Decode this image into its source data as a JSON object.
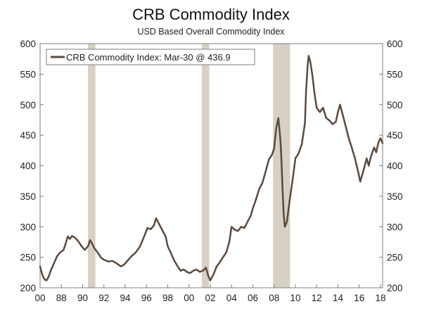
{
  "chart_data": {
    "type": "line",
    "title": "CRB Commodity Index",
    "subtitle": "USD Based Overall Commodity Index",
    "ylim": [
      200,
      600
    ],
    "yticks": [
      200,
      250,
      300,
      350,
      400,
      450,
      500,
      550,
      600
    ],
    "xlim": [
      1986.0,
      2018.2
    ],
    "xticks": [
      {
        "x": 1986,
        "label": "00"
      },
      {
        "x": 1988,
        "label": "88"
      },
      {
        "x": 1990,
        "label": "90"
      },
      {
        "x": 1992,
        "label": "92"
      },
      {
        "x": 1994,
        "label": "94"
      },
      {
        "x": 1996,
        "label": "96"
      },
      {
        "x": 1998,
        "label": "98"
      },
      {
        "x": 2000,
        "label": "00"
      },
      {
        "x": 2002,
        "label": "02"
      },
      {
        "x": 2004,
        "label": "04"
      },
      {
        "x": 2006,
        "label": "06"
      },
      {
        "x": 2008,
        "label": "08"
      },
      {
        "x": 2010,
        "label": "10"
      },
      {
        "x": 2012,
        "label": "12"
      },
      {
        "x": 2014,
        "label": "14"
      },
      {
        "x": 2016,
        "label": "16"
      },
      {
        "x": 2018,
        "label": "18"
      }
    ],
    "recessions": [
      [
        1990.5,
        1991.2
      ],
      [
        2001.2,
        2001.9
      ],
      [
        2007.9,
        2009.5
      ]
    ],
    "legend": {
      "placement": "top-left",
      "text": "CRB Commodity Index: Mar-30 @ 436.9"
    },
    "series": [
      {
        "name": "CRB Commodity Index",
        "color": "#5a4a3f",
        "points": [
          [
            1986.0,
            235
          ],
          [
            1986.2,
            222
          ],
          [
            1986.4,
            214
          ],
          [
            1986.6,
            212
          ],
          [
            1986.8,
            218
          ],
          [
            1987.0,
            228
          ],
          [
            1987.3,
            240
          ],
          [
            1987.6,
            252
          ],
          [
            1987.9,
            258
          ],
          [
            1988.2,
            262
          ],
          [
            1988.4,
            272
          ],
          [
            1988.6,
            284
          ],
          [
            1988.8,
            280
          ],
          [
            1989.0,
            285
          ],
          [
            1989.3,
            282
          ],
          [
            1989.6,
            276
          ],
          [
            1989.9,
            268
          ],
          [
            1990.2,
            262
          ],
          [
            1990.5,
            268
          ],
          [
            1990.7,
            278
          ],
          [
            1990.9,
            272
          ],
          [
            1991.1,
            265
          ],
          [
            1991.4,
            258
          ],
          [
            1991.7,
            250
          ],
          [
            1992.0,
            246
          ],
          [
            1992.4,
            243
          ],
          [
            1992.8,
            244
          ],
          [
            1993.2,
            240
          ],
          [
            1993.6,
            235
          ],
          [
            1993.9,
            238
          ],
          [
            1994.2,
            244
          ],
          [
            1994.6,
            252
          ],
          [
            1995.0,
            258
          ],
          [
            1995.4,
            268
          ],
          [
            1995.8,
            285
          ],
          [
            1996.1,
            298
          ],
          [
            1996.4,
            296
          ],
          [
            1996.7,
            302
          ],
          [
            1996.9,
            314
          ],
          [
            1997.2,
            304
          ],
          [
            1997.5,
            294
          ],
          [
            1997.8,
            284
          ],
          [
            1998.0,
            268
          ],
          [
            1998.3,
            257
          ],
          [
            1998.6,
            245
          ],
          [
            1998.9,
            236
          ],
          [
            1999.2,
            228
          ],
          [
            1999.5,
            230
          ],
          [
            1999.8,
            226
          ],
          [
            2000.1,
            224
          ],
          [
            2000.4,
            228
          ],
          [
            2000.7,
            230
          ],
          [
            2001.0,
            226
          ],
          [
            2001.3,
            228
          ],
          [
            2001.6,
            233
          ],
          [
            2001.8,
            220
          ],
          [
            2002.0,
            212
          ],
          [
            2002.3,
            222
          ],
          [
            2002.6,
            235
          ],
          [
            2002.9,
            242
          ],
          [
            2003.2,
            250
          ],
          [
            2003.5,
            258
          ],
          [
            2003.8,
            276
          ],
          [
            2004.0,
            300
          ],
          [
            2004.3,
            295
          ],
          [
            2004.6,
            293
          ],
          [
            2004.9,
            300
          ],
          [
            2005.2,
            298
          ],
          [
            2005.5,
            308
          ],
          [
            2005.8,
            318
          ],
          [
            2006.0,
            330
          ],
          [
            2006.3,
            345
          ],
          [
            2006.6,
            362
          ],
          [
            2006.9,
            372
          ],
          [
            2007.2,
            390
          ],
          [
            2007.5,
            410
          ],
          [
            2007.8,
            418
          ],
          [
            2008.0,
            428
          ],
          [
            2008.2,
            462
          ],
          [
            2008.4,
            478
          ],
          [
            2008.5,
            460
          ],
          [
            2008.6,
            440
          ],
          [
            2008.7,
            405
          ],
          [
            2008.8,
            360
          ],
          [
            2008.9,
            322
          ],
          [
            2009.0,
            300
          ],
          [
            2009.2,
            308
          ],
          [
            2009.5,
            348
          ],
          [
            2009.8,
            385
          ],
          [
            2010.0,
            412
          ],
          [
            2010.3,
            420
          ],
          [
            2010.6,
            435
          ],
          [
            2010.9,
            470
          ],
          [
            2011.0,
            520
          ],
          [
            2011.15,
            565
          ],
          [
            2011.25,
            580
          ],
          [
            2011.4,
            570
          ],
          [
            2011.6,
            548
          ],
          [
            2011.8,
            518
          ],
          [
            2012.0,
            495
          ],
          [
            2012.3,
            488
          ],
          [
            2012.6,
            495
          ],
          [
            2012.9,
            478
          ],
          [
            2013.2,
            474
          ],
          [
            2013.5,
            468
          ],
          [
            2013.8,
            472
          ],
          [
            2014.0,
            488
          ],
          [
            2014.2,
            500
          ],
          [
            2014.5,
            480
          ],
          [
            2014.8,
            460
          ],
          [
            2015.0,
            446
          ],
          [
            2015.3,
            430
          ],
          [
            2015.6,
            412
          ],
          [
            2015.9,
            390
          ],
          [
            2016.1,
            374
          ],
          [
            2016.4,
            392
          ],
          [
            2016.7,
            412
          ],
          [
            2016.9,
            400
          ],
          [
            2017.1,
            415
          ],
          [
            2017.4,
            430
          ],
          [
            2017.6,
            422
          ],
          [
            2017.8,
            438
          ],
          [
            2018.0,
            445
          ],
          [
            2018.2,
            437
          ]
        ]
      }
    ]
  }
}
